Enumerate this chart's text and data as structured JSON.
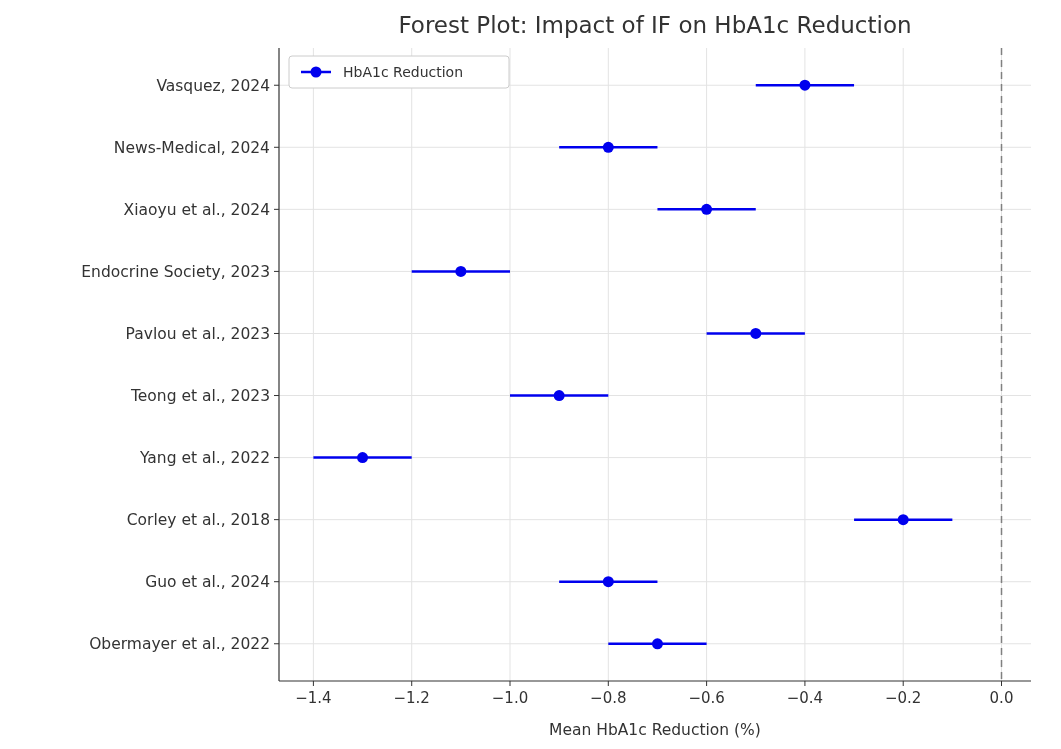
{
  "chart_data": {
    "type": "scatter",
    "orientation": "horizontal",
    "title": "Forest Plot: Impact of IF on HbA1c Reduction",
    "xlabel": "Mean HbA1c Reduction (%)",
    "categories": [
      "Vasquez, 2024",
      "News-Medical, 2024",
      "Xiaoyu et al., 2024",
      "Endocrine Society, 2023",
      "Pavlou et al., 2023",
      "Teong et al., 2023",
      "Yang et al., 2022",
      "Corley et al., 2018",
      "Guo et al., 2024",
      "Obermayer et al., 2022"
    ],
    "series": [
      {
        "name": "HbA1c Reduction",
        "color": "#0000ee",
        "values": [
          -0.4,
          -0.8,
          -0.6,
          -1.1,
          -0.5,
          -0.9,
          -1.3,
          -0.2,
          -0.8,
          -0.7
        ],
        "errors": [
          0.1,
          0.1,
          0.1,
          0.1,
          0.1,
          0.1,
          0.1,
          0.1,
          0.1,
          0.1
        ]
      }
    ],
    "xlim": [
      -1.47,
      0.06
    ],
    "xticks": [
      {
        "value": -1.4,
        "label": "−1.4"
      },
      {
        "value": -1.2,
        "label": "−1.2"
      },
      {
        "value": -1.0,
        "label": "−1.0"
      },
      {
        "value": -0.8,
        "label": "−0.8"
      },
      {
        "value": -0.6,
        "label": "−0.6"
      },
      {
        "value": -0.4,
        "label": "−0.4"
      },
      {
        "value": -0.2,
        "label": "−0.2"
      },
      {
        "value": 0.0,
        "label": "0.0"
      }
    ],
    "ref_lines": [
      {
        "axis": "x",
        "value": 0,
        "color": "#808080",
        "line_style": "dashed"
      }
    ],
    "grid": true,
    "legend": "top left",
    "marker": "circle"
  }
}
